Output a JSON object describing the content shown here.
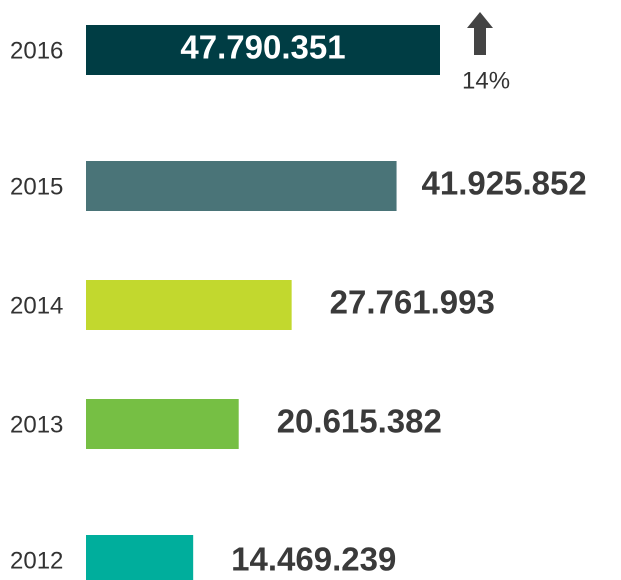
{
  "chart_data": {
    "type": "bar",
    "orientation": "horizontal",
    "categories": [
      "2016",
      "2015",
      "2014",
      "2013",
      "2012"
    ],
    "values": [
      47790351,
      41925852,
      27761993,
      20615382,
      14469239
    ],
    "value_labels": [
      "47.790.351",
      "41.925.852",
      "27.761.993",
      "20.615.382",
      "14.469.239"
    ],
    "colors": [
      "#003d44",
      "#4a7478",
      "#c2d82e",
      "#76bf44",
      "#00ae9c"
    ],
    "annotation": "14%"
  }
}
